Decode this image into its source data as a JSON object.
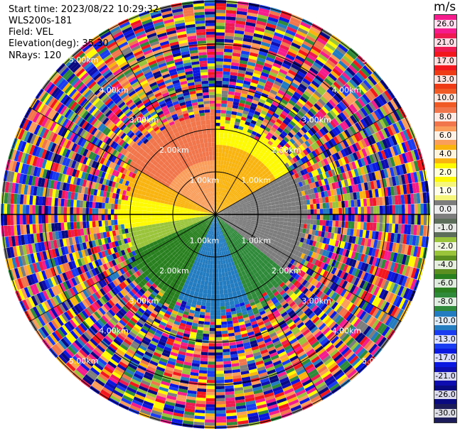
{
  "header": {
    "start_time": "Start time: 2023/08/22 10:29:32",
    "instrument": "WLS200s-181",
    "field": "Field: VEL",
    "elevation": "Elevation(deg): 35.30",
    "nrays": "NRays: 120"
  },
  "colorbar": {
    "unit": "m/s",
    "ticks": [
      "26.0",
      "21.0",
      "17.0",
      "13.0",
      "10.0",
      "8.0",
      "6.0",
      "4.0",
      "2.0",
      "1.0",
      "0.0",
      "-1.0",
      "-2.0",
      "-4.0",
      "-6.0",
      "-8.0",
      "-10.0",
      "-13.0",
      "-17.0",
      "-21.0",
      "-26.0",
      "-30.0"
    ],
    "colors": [
      "#f51c8e",
      "#ee1a52",
      "#f2171c",
      "#ef3a16",
      "#f05a24",
      "#f2764b",
      "#f99e5b",
      "#f9b410",
      "#fdfa03",
      "#f6f67a",
      "#7d7d7d",
      "#5d6f5a",
      "#9ac43a",
      "#5b8f1f",
      "#28801f",
      "#2f8a3a",
      "#237bc0",
      "#1a3cf0",
      "#0b18e0",
      "#0d0db0",
      "#0a0a80",
      "#1c1c5a"
    ]
  },
  "range_labels": [
    "1.00km",
    "2.00km",
    "3.00km",
    "4.00km",
    "5.00km"
  ],
  "scan": {
    "rays": 120,
    "inner_core_gates": 22,
    "outer_gates": 40
  }
}
